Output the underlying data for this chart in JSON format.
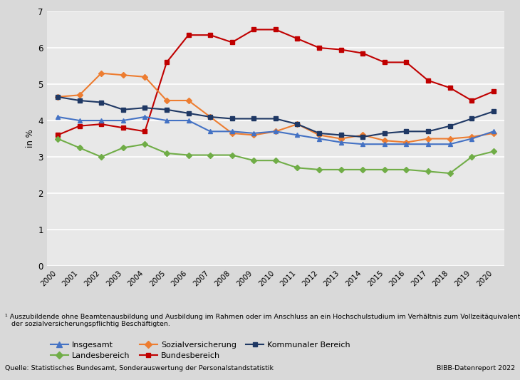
{
  "years": [
    2000,
    2001,
    2002,
    2003,
    2004,
    2005,
    2006,
    2007,
    2008,
    2009,
    2010,
    2011,
    2012,
    2013,
    2014,
    2015,
    2016,
    2017,
    2018,
    2019,
    2020
  ],
  "insgesamt": [
    4.1,
    4.0,
    4.0,
    4.0,
    4.1,
    4.0,
    4.0,
    3.7,
    3.7,
    3.65,
    3.7,
    3.6,
    3.5,
    3.4,
    3.35,
    3.35,
    3.35,
    3.35,
    3.35,
    3.5,
    3.7
  ],
  "landesbereich": [
    3.5,
    3.25,
    3.0,
    3.25,
    3.35,
    3.1,
    3.05,
    3.05,
    3.05,
    2.9,
    2.9,
    2.7,
    2.65,
    2.65,
    2.65,
    2.65,
    2.65,
    2.6,
    2.55,
    3.0,
    3.15
  ],
  "sozialversicherung": [
    4.65,
    4.7,
    5.3,
    5.25,
    5.2,
    4.55,
    4.55,
    4.1,
    3.65,
    3.6,
    3.7,
    3.9,
    3.6,
    3.5,
    3.6,
    3.45,
    3.4,
    3.5,
    3.5,
    3.55,
    3.65
  ],
  "bundesbereich": [
    3.6,
    3.85,
    3.9,
    3.8,
    3.7,
    5.6,
    6.35,
    6.35,
    6.15,
    6.5,
    6.5,
    6.25,
    6.0,
    5.95,
    5.85,
    5.6,
    5.6,
    5.1,
    4.9,
    4.55,
    4.8
  ],
  "kommunaler_bereich": [
    4.65,
    4.55,
    4.5,
    4.3,
    4.35,
    4.3,
    4.2,
    4.1,
    4.05,
    4.05,
    4.05,
    3.9,
    3.65,
    3.6,
    3.55,
    3.65,
    3.7,
    3.7,
    3.85,
    4.05,
    4.25
  ],
  "insgesamt_color": "#4472C4",
  "landesbereich_color": "#70AD47",
  "sozialversicherung_color": "#ED7D31",
  "bundesbereich_color": "#C00000",
  "kommunaler_bereich_color": "#1F3864",
  "background_color": "#D9D9D9",
  "plot_bg_color": "#E8E8E8",
  "ylim": [
    0,
    7
  ],
  "yticks": [
    0,
    1,
    2,
    3,
    4,
    5,
    6,
    7
  ],
  "ylabel": "in %",
  "footnote1": "¹ Auszubildende ohne Beamtenausbildung und Ausbildung im Rahmen oder im Anschluss an ein Hochschulstudium im Verhältnis zum Vollzeitäquivalent",
  "footnote2": "   der sozialversicherungspflichtig Beschäftigten.",
  "source": "Quelle: Statistisches Bundesamt, Sonderauswertung der Personalstandstatistik",
  "bibb": "BIBB-Datenreport 2022"
}
